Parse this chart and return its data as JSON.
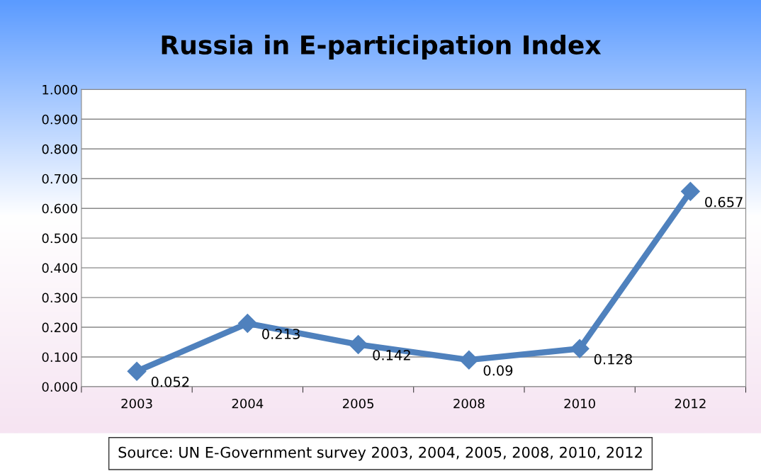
{
  "chart_data": {
    "type": "line",
    "title": "Russia in E-participation Index",
    "categories": [
      "2003",
      "2004",
      "2005",
      "2008",
      "2010",
      "2012"
    ],
    "series": [
      {
        "color": "#4f81bd",
        "values": [
          0.052,
          0.213,
          0.142,
          0.09,
          0.128,
          0.657
        ]
      }
    ],
    "ylim": [
      0,
      1
    ],
    "yticks": [
      {
        "value": 0,
        "label": "0.000"
      },
      {
        "value": 0.1,
        "label": "0.100"
      },
      {
        "value": 0.2,
        "label": "0.200"
      },
      {
        "value": 0.3,
        "label": "0.300"
      },
      {
        "value": 0.4,
        "label": "0.400"
      },
      {
        "value": 0.5,
        "label": "0.500"
      },
      {
        "value": 0.6,
        "label": "0.600"
      },
      {
        "value": 0.7,
        "label": "0.700"
      },
      {
        "value": 0.8,
        "label": "0.800"
      },
      {
        "value": 0.9,
        "label": "0.900"
      },
      {
        "value": 1,
        "label": "1.000"
      }
    ],
    "grid": "y",
    "marker": "diamond",
    "line_style": "solid",
    "data_labels": true,
    "annotations": [
      "Source: UN E-Government survey 2003, 2004, 2005, 2008, 2010, 2012"
    ]
  }
}
